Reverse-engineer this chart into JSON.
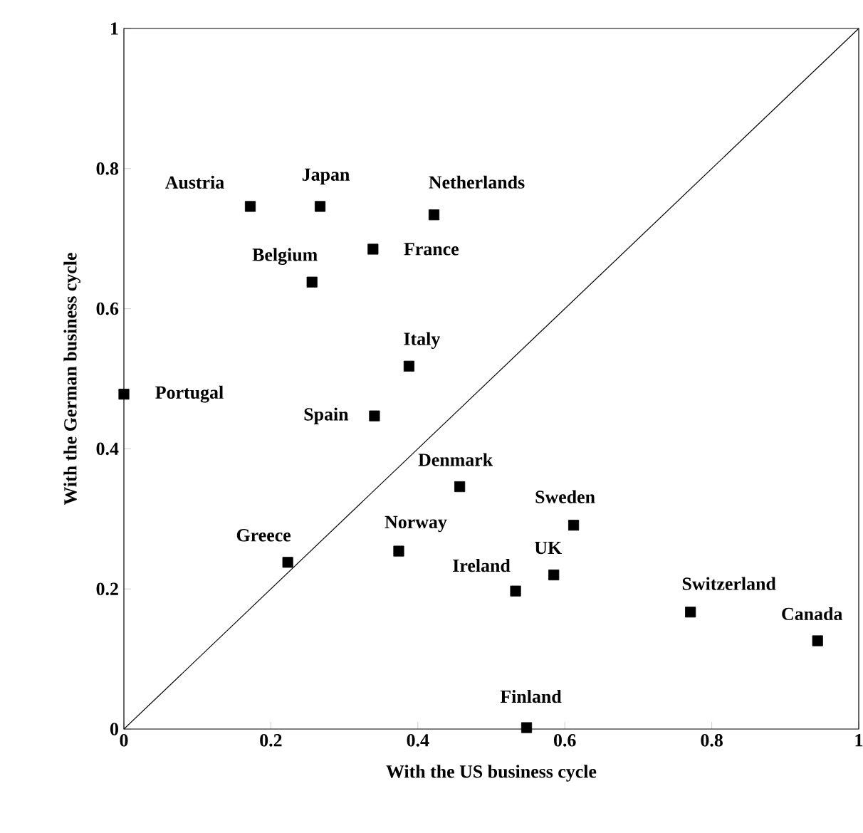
{
  "chart_data": {
    "type": "scatter",
    "xlabel": "With the US business cycle",
    "ylabel": "With the German business cycle",
    "xlim": [
      0,
      1
    ],
    "ylim": [
      0,
      1
    ],
    "xticks": [
      0,
      0.2,
      0.4,
      0.6,
      0.8,
      1
    ],
    "yticks": [
      0,
      0.2,
      0.4,
      0.6,
      0.8,
      1
    ],
    "marker": "square",
    "series": [
      {
        "color": "#000000",
        "x": [
          0.172,
          0.267,
          0.422,
          0.339,
          0.256,
          0.0,
          0.388,
          0.341,
          0.457,
          0.612,
          0.374,
          0.223,
          0.585,
          0.533,
          0.771,
          0.944,
          0.548
        ],
        "values": [
          0.746,
          0.746,
          0.734,
          0.685,
          0.638,
          0.478,
          0.518,
          0.447,
          0.346,
          0.291,
          0.254,
          0.238,
          0.22,
          0.197,
          0.167,
          0.126,
          0.002
        ]
      },
      {
        "type": "line",
        "marker": "none",
        "color": "#000000",
        "x": [
          0,
          1
        ],
        "values": [
          0,
          1
        ]
      }
    ],
    "annotations": [
      {
        "text": "Austria",
        "x": 0.172,
        "y": 0.746
      },
      {
        "text": "Japan",
        "x": 0.267,
        "y": 0.746
      },
      {
        "text": "Netherlands",
        "x": 0.422,
        "y": 0.734
      },
      {
        "text": "France",
        "x": 0.339,
        "y": 0.685
      },
      {
        "text": "Belgium",
        "x": 0.256,
        "y": 0.638
      },
      {
        "text": "Portugal",
        "x": 0.0,
        "y": 0.478
      },
      {
        "text": "Italy",
        "x": 0.388,
        "y": 0.518
      },
      {
        "text": "Spain",
        "x": 0.341,
        "y": 0.447
      },
      {
        "text": "Denmark",
        "x": 0.457,
        "y": 0.346
      },
      {
        "text": "Sweden",
        "x": 0.612,
        "y": 0.291
      },
      {
        "text": "Norway",
        "x": 0.374,
        "y": 0.254
      },
      {
        "text": "Greece",
        "x": 0.223,
        "y": 0.238
      },
      {
        "text": "UK",
        "x": 0.585,
        "y": 0.22
      },
      {
        "text": "Ireland",
        "x": 0.533,
        "y": 0.197
      },
      {
        "text": "Switzerland",
        "x": 0.771,
        "y": 0.167
      },
      {
        "text": "Canada",
        "x": 0.944,
        "y": 0.126
      },
      {
        "text": "Finland",
        "x": 0.548,
        "y": 0.002
      }
    ]
  }
}
